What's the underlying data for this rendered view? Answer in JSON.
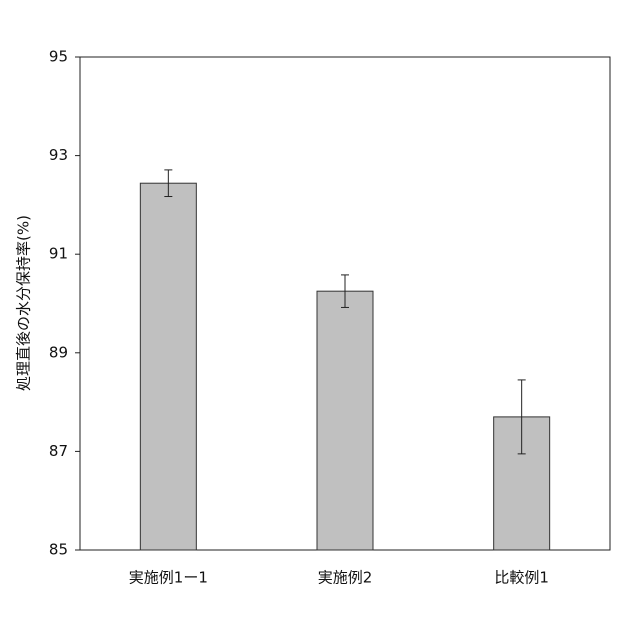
{
  "chart_data": {
    "type": "bar",
    "y_label": "処理直後の水分保持率(%)",
    "categories": [
      "実施例1ー1",
      "実施例2",
      "比較例1"
    ],
    "values": [
      92.44,
      90.25,
      87.7
    ],
    "errors": [
      0.27,
      0.33,
      0.75
    ],
    "color": "#c0c0c0",
    "ylim": [
      85,
      95
    ],
    "yticks": [
      85,
      87,
      89,
      91,
      93,
      95
    ],
    "grid": false
  }
}
